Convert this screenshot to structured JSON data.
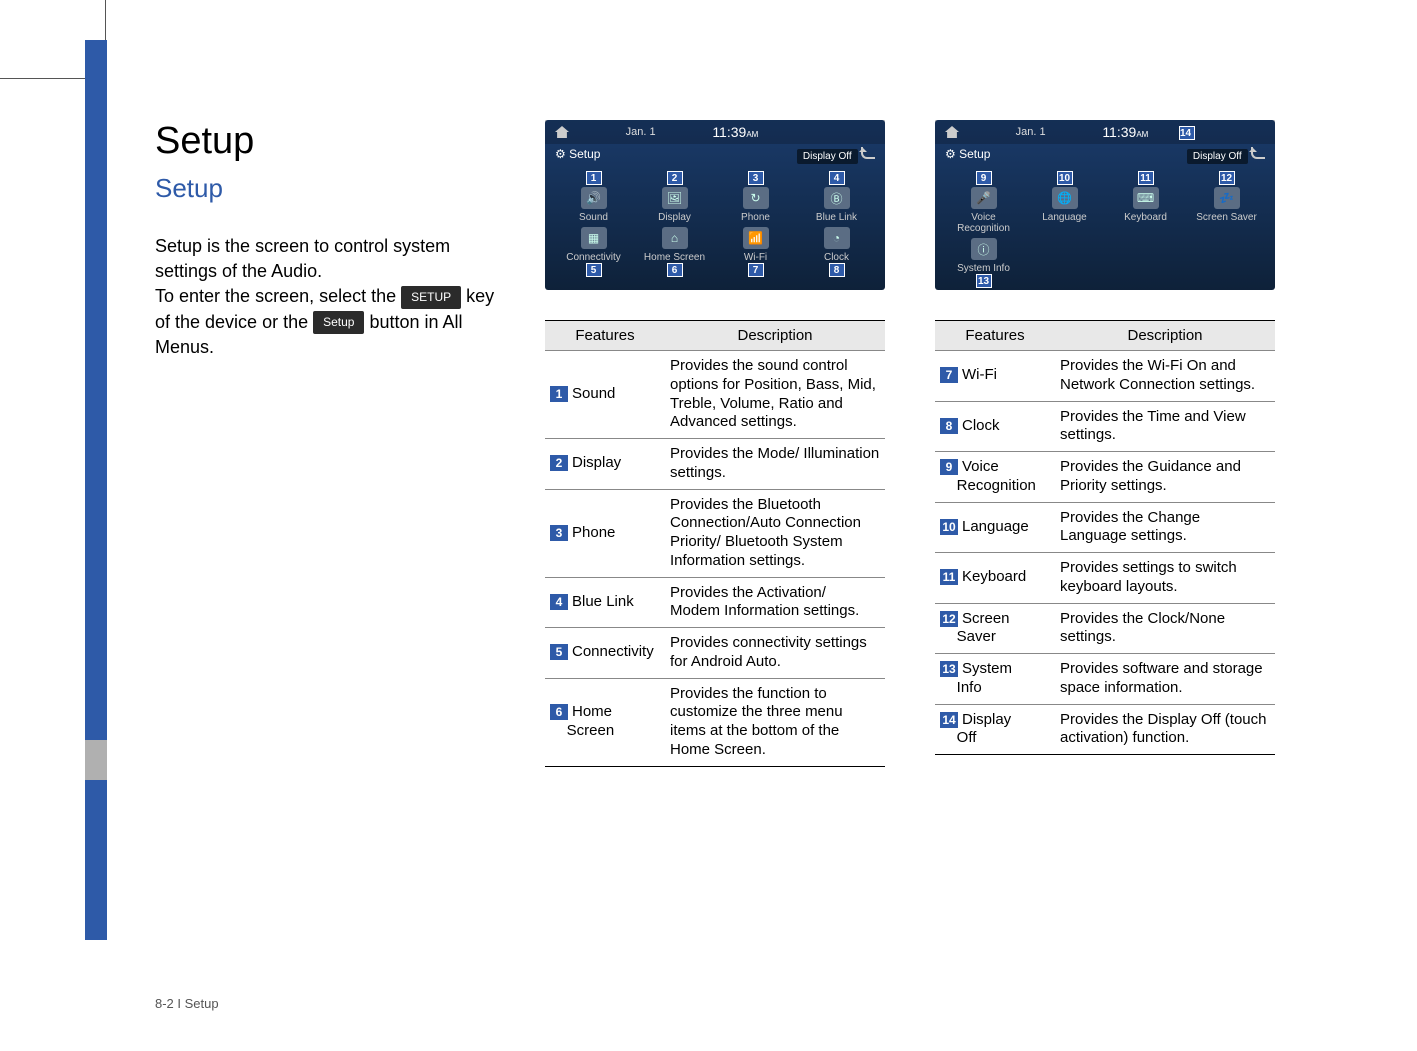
{
  "page": {
    "title": "Setup",
    "subtitle": "Setup",
    "footer": "8-2 I Setup"
  },
  "intro": {
    "line1": "Setup is the screen to control system settings of the Audio.",
    "line2a": "To enter the screen, select the ",
    "key1": "SETUP",
    "line2b": " key of the device or the ",
    "key2": "Setup",
    "line2c": " button in All Menus."
  },
  "screenshot": {
    "date": "Jan.  1",
    "time": "11:39",
    "ampm": "AM",
    "setup_label": "Setup",
    "display_off": "Display Off"
  },
  "screen1_items": [
    {
      "num": "1",
      "label": "Sound",
      "glyph": "🔊"
    },
    {
      "num": "2",
      "label": "Display",
      "glyph": "🖼"
    },
    {
      "num": "3",
      "label": "Phone",
      "glyph": "↻"
    },
    {
      "num": "4",
      "label": "Blue Link",
      "glyph": "Ⓑ"
    },
    {
      "num": "5",
      "label": "Connectivity",
      "glyph": "▦"
    },
    {
      "num": "6",
      "label": "Home Screen",
      "glyph": "⌂"
    },
    {
      "num": "7",
      "label": "Wi-Fi",
      "glyph": "📶"
    },
    {
      "num": "8",
      "label": "Clock",
      "glyph": "◔"
    }
  ],
  "screen2_items": [
    {
      "num": "9",
      "label": "Voice Recognition",
      "glyph": "🎤"
    },
    {
      "num": "10",
      "label": "Language",
      "glyph": "🌐"
    },
    {
      "num": "11",
      "label": "Keyboard",
      "glyph": "⌨"
    },
    {
      "num": "12",
      "label": "Screen Saver",
      "glyph": "💤"
    },
    {
      "num": "13",
      "label": "System Info",
      "glyph": "ⓘ"
    }
  ],
  "screen2_extra_badge": "14",
  "table_headers": {
    "features": "Features",
    "description": "Description"
  },
  "table1": [
    {
      "num": "1",
      "name": "Sound",
      "desc": "Provides the sound control options for Position, Bass, Mid, Treble, Volume, Ratio and Advanced settings."
    },
    {
      "num": "2",
      "name": "Display",
      "desc": "Provides the Mode/ Illumination settings."
    },
    {
      "num": "3",
      "name": "Phone",
      "desc": "Provides the Bluetooth Connection/Auto Connection Priority/ Bluetooth System Information settings."
    },
    {
      "num": "4",
      "name": "Blue Link",
      "desc": "Provides the Activation/ Modem Information settings."
    },
    {
      "num": "5",
      "name": "Connectivity",
      "desc": "Provides connectivity settings for Android Auto."
    },
    {
      "num": "6",
      "name": "Home Screen",
      "desc": "Provides the function to customize the three menu items at the bottom of the Home Screen."
    }
  ],
  "table2": [
    {
      "num": "7",
      "name": "Wi-Fi",
      "desc": "Provides the Wi-Fi On and Network Connection settings."
    },
    {
      "num": "8",
      "name": "Clock",
      "desc": "Provides the Time and View settings."
    },
    {
      "num": "9",
      "name": "Voice Recognition",
      "desc": "Provides the Guidance and Priority settings."
    },
    {
      "num": "10",
      "name": "Language",
      "desc": "Provides the Change Language settings."
    },
    {
      "num": "11",
      "name": "Keyboard",
      "desc": "Provides settings to switch keyboard layouts."
    },
    {
      "num": "12",
      "name": "Screen Saver",
      "desc": "Provides the Clock/None settings."
    },
    {
      "num": "13",
      "name": "System Info",
      "desc": "Provides software and storage space information."
    },
    {
      "num": "14",
      "name": "Display Off",
      "desc": "Provides the Display Off (touch activation) function."
    }
  ]
}
